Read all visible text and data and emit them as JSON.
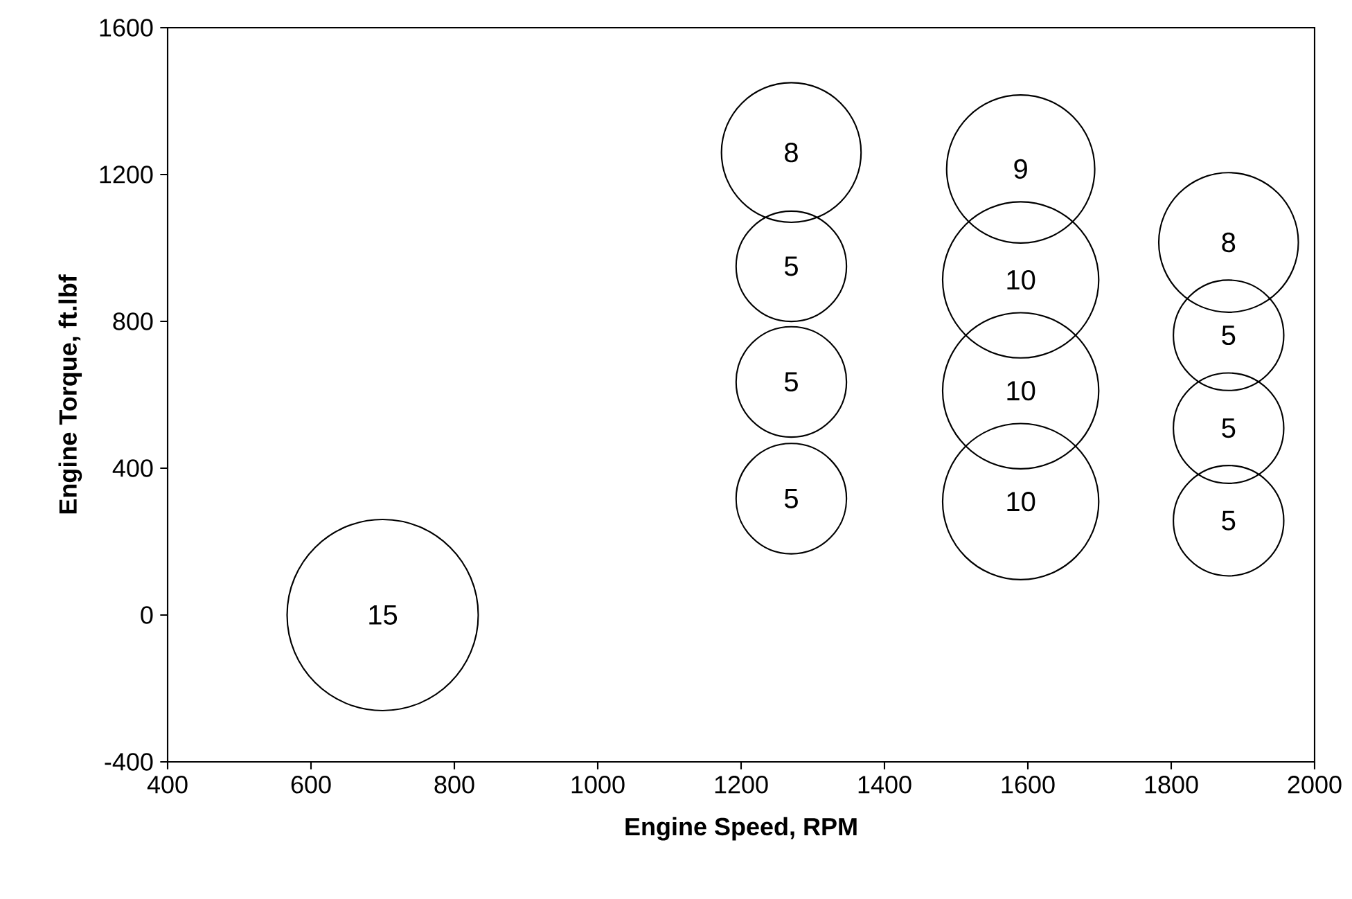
{
  "chart_data": {
    "type": "bubble",
    "xlabel": "Engine Speed, RPM",
    "ylabel": "Engine Torque, ft.lbf",
    "x": [
      700,
      1270,
      1270,
      1270,
      1270,
      1590,
      1590,
      1590,
      1590,
      1880,
      1880,
      1880,
      1880
    ],
    "values": [
      0,
      1260,
      950,
      635,
      317,
      1215,
      913,
      611,
      309,
      1015,
      762,
      509,
      257
    ],
    "sizes": [
      15,
      8,
      5,
      5,
      5,
      9,
      10,
      10,
      10,
      8,
      5,
      5,
      5
    ],
    "value_labels": [
      "15",
      "8",
      "5",
      "5",
      "5",
      "9",
      "10",
      "10",
      "10",
      "8",
      "5",
      "5",
      "5"
    ],
    "color": "#000000",
    "xlim": [
      400,
      2000
    ],
    "xticks": [
      400,
      600,
      800,
      1000,
      1200,
      1400,
      1600,
      1800,
      2000
    ],
    "ylim": [
      -400,
      1600
    ],
    "yticks": [
      -400,
      0,
      400,
      800,
      1200,
      1600
    ],
    "grid": false
  }
}
